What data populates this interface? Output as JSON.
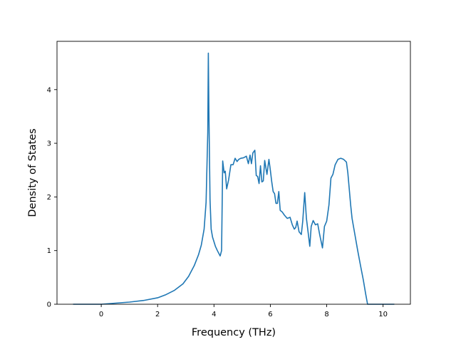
{
  "chart_data": {
    "type": "line",
    "title": "",
    "xlabel": "Frequency (THz)",
    "ylabel": "Density of States",
    "xlim": [
      -1.57,
      10.97
    ],
    "ylim": [
      0,
      4.9
    ],
    "xticks": [
      0,
      2,
      4,
      6,
      8,
      10
    ],
    "yticks": [
      0,
      1,
      2,
      3,
      4
    ],
    "grid": false,
    "line_color": "#1f77b4",
    "series": [
      {
        "x": [
          -1.0,
          -0.5,
          0.0,
          0.5,
          1.0,
          1.5,
          2.0,
          2.3,
          2.6,
          2.9,
          3.1,
          3.3,
          3.45,
          3.55,
          3.65,
          3.72,
          3.78,
          3.8,
          3.82,
          3.86,
          3.9,
          3.95,
          4.05,
          4.12,
          4.22,
          4.27,
          4.31,
          4.36,
          4.4,
          4.45,
          4.52,
          4.6,
          4.68,
          4.75,
          4.82,
          4.88,
          4.95,
          5.05,
          5.15,
          5.22,
          5.28,
          5.33,
          5.38,
          5.45,
          5.5,
          5.55,
          5.6,
          5.65,
          5.7,
          5.75,
          5.8,
          5.88,
          5.95,
          6.0,
          6.05,
          6.1,
          6.15,
          6.2,
          6.25,
          6.3,
          6.35,
          6.42,
          6.5,
          6.6,
          6.7,
          6.78,
          6.85,
          6.9,
          6.95,
          7.02,
          7.1,
          7.15,
          7.22,
          7.28,
          7.35,
          7.4,
          7.45,
          7.52,
          7.6,
          7.68,
          7.75,
          7.85,
          7.92,
          8.0,
          8.08,
          8.15,
          8.22,
          8.3,
          8.4,
          8.5,
          8.6,
          8.7,
          8.75,
          8.8,
          8.85,
          8.9,
          9.0,
          9.1,
          9.2,
          9.3,
          9.38,
          9.45,
          9.5,
          9.8,
          10.0,
          10.4
        ],
        "y": [
          0.0,
          0.0,
          0.0,
          0.02,
          0.04,
          0.07,
          0.12,
          0.18,
          0.26,
          0.38,
          0.52,
          0.72,
          0.92,
          1.1,
          1.4,
          1.9,
          3.2,
          4.68,
          3.6,
          1.95,
          1.4,
          1.25,
          1.08,
          1.0,
          0.9,
          1.0,
          2.67,
          2.45,
          2.48,
          2.15,
          2.32,
          2.6,
          2.6,
          2.72,
          2.66,
          2.7,
          2.72,
          2.73,
          2.76,
          2.62,
          2.78,
          2.62,
          2.82,
          2.87,
          2.4,
          2.38,
          2.25,
          2.58,
          2.28,
          2.3,
          2.68,
          2.42,
          2.7,
          2.5,
          2.28,
          2.1,
          2.06,
          1.88,
          1.88,
          2.1,
          1.75,
          1.72,
          1.66,
          1.6,
          1.62,
          1.48,
          1.4,
          1.43,
          1.55,
          1.35,
          1.3,
          1.55,
          2.08,
          1.6,
          1.3,
          1.08,
          1.45,
          1.56,
          1.48,
          1.5,
          1.3,
          1.05,
          1.45,
          1.55,
          1.85,
          2.35,
          2.42,
          2.6,
          2.7,
          2.72,
          2.7,
          2.65,
          2.45,
          2.15,
          1.85,
          1.6,
          1.3,
          1.0,
          0.72,
          0.45,
          0.2,
          0.0,
          0.0,
          0.0,
          0.0,
          0.0
        ]
      }
    ]
  }
}
